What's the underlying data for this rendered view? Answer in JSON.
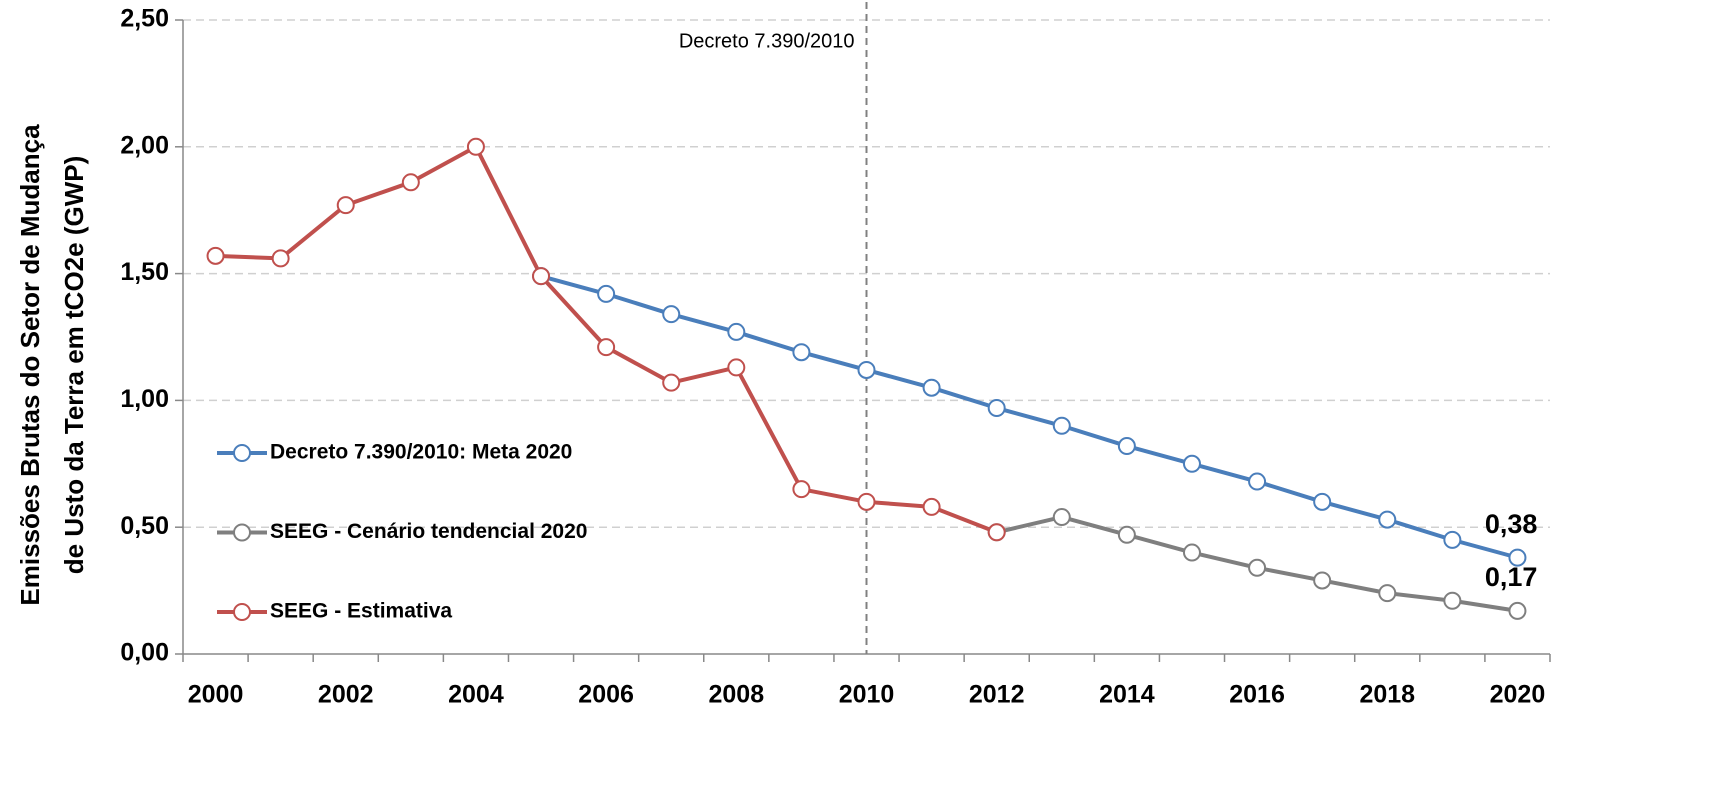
{
  "chart_data": {
    "type": "line",
    "y_label": [
      "Emissões Brutas do Setor de Mudança",
      "de Usto da Terra em tCO2e (GWP)"
    ],
    "categories": [
      "2000",
      null,
      "2002",
      null,
      "2004",
      null,
      "2006",
      null,
      "2008",
      null,
      "2010",
      null,
      "2012",
      null,
      "2014",
      null,
      "2016",
      null,
      "2018",
      null,
      "2020"
    ],
    "series": [
      {
        "name": "Decreto 7.390/2010: Meta 2020",
        "color": "#4a7ebb",
        "values": [
          null,
          null,
          null,
          null,
          null,
          1.49,
          1.42,
          1.34,
          1.27,
          1.19,
          1.12,
          1.05,
          0.97,
          0.9,
          0.82,
          0.75,
          0.68,
          0.6,
          0.53,
          0.45,
          0.38
        ],
        "value_labels": [
          null,
          null,
          null,
          null,
          null,
          null,
          null,
          null,
          null,
          null,
          null,
          null,
          null,
          null,
          null,
          null,
          null,
          null,
          null,
          null,
          "0,38"
        ]
      },
      {
        "name": "SEEG - Cenário tendencial 2020",
        "color": "#7f7f7f",
        "values": [
          null,
          null,
          null,
          null,
          null,
          null,
          null,
          null,
          null,
          null,
          null,
          null,
          0.48,
          0.54,
          0.47,
          0.4,
          0.34,
          0.29,
          0.24,
          0.21,
          0.17
        ],
        "value_labels": [
          null,
          null,
          null,
          null,
          null,
          null,
          null,
          null,
          null,
          null,
          null,
          null,
          null,
          null,
          null,
          null,
          null,
          null,
          null,
          null,
          "0,17"
        ]
      },
      {
        "name": "SEEG - Estimativa",
        "color": "#c0504d",
        "values": [
          1.57,
          1.56,
          1.77,
          1.86,
          2.0,
          1.49,
          1.21,
          1.07,
          1.13,
          0.65,
          0.6,
          0.58,
          0.48,
          null,
          null,
          null,
          null,
          null,
          null,
          null,
          null
        ]
      }
    ],
    "ylim": [
      0,
      2.5
    ],
    "yticks": [
      {
        "value": 0,
        "label": "0,00"
      },
      {
        "value": 0.5,
        "label": "0,50"
      },
      {
        "value": 1,
        "label": "1,00"
      },
      {
        "value": 1.5,
        "label": "1,50"
      },
      {
        "value": 2,
        "label": "2,00"
      },
      {
        "value": 2.5,
        "label": "2,50"
      }
    ],
    "grid": true,
    "legend": "lower left",
    "annotation": {
      "text": "Decreto 7.390/2010",
      "x": "2010"
    }
  }
}
